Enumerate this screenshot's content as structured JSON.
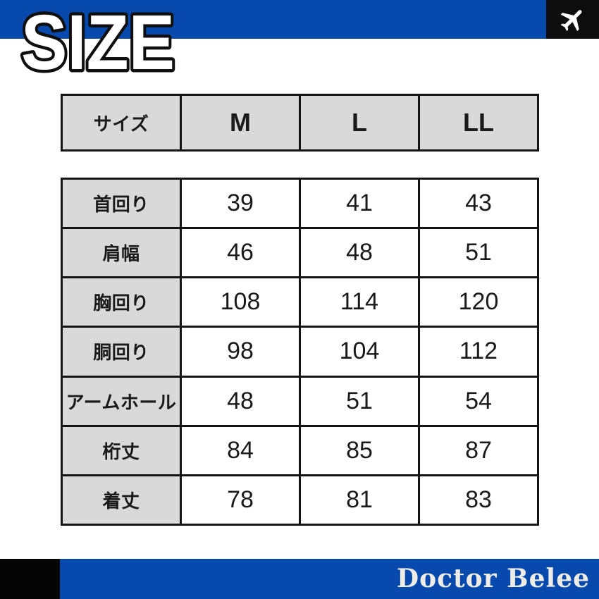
{
  "header": {
    "title": "SIZE",
    "bar_color": "#0849ad",
    "plane_box_color": "#0d0d0d",
    "airplane_icon": "airplane-icon"
  },
  "size_table": {
    "header_row": [
      "サイズ",
      "M",
      "L",
      "LL"
    ],
    "rows": [
      {
        "label": "首回り",
        "values": [
          "39",
          "41",
          "43"
        ]
      },
      {
        "label": "肩幅",
        "values": [
          "46",
          "48",
          "51"
        ]
      },
      {
        "label": "胸回り",
        "values": [
          "108",
          "114",
          "120"
        ]
      },
      {
        "label": "胴回り",
        "values": [
          "98",
          "104",
          "112"
        ]
      },
      {
        "label": "アームホール",
        "values": [
          "48",
          "51",
          "54"
        ]
      },
      {
        "label": "桁丈",
        "values": [
          "84",
          "85",
          "87"
        ]
      },
      {
        "label": "着丈",
        "values": [
          "78",
          "81",
          "83"
        ]
      }
    ]
  },
  "footer": {
    "brand": "Doctor Belee"
  },
  "colors": {
    "accent_blue": "#0849ad",
    "cell_gray": "#d9d9d9",
    "table_border": "#141414",
    "brand_text": "#edece7",
    "title_fill": "#ffffff",
    "title_outline": "#0f0f0f"
  },
  "chart_data": {
    "type": "table",
    "title": "SIZE",
    "row_header_label": "サイズ",
    "categories": [
      "M",
      "L",
      "LL"
    ],
    "series": [
      {
        "name": "首回り",
        "values": [
          39,
          41,
          43
        ]
      },
      {
        "name": "肩幅",
        "values": [
          46,
          48,
          51
        ]
      },
      {
        "name": "胸回り",
        "values": [
          108,
          114,
          120
        ]
      },
      {
        "name": "胴回り",
        "values": [
          98,
          104,
          112
        ]
      },
      {
        "name": "アームホール",
        "values": [
          48,
          51,
          54
        ]
      },
      {
        "name": "桁丈",
        "values": [
          84,
          85,
          87
        ]
      },
      {
        "name": "着丈",
        "values": [
          78,
          81,
          83
        ]
      }
    ]
  }
}
